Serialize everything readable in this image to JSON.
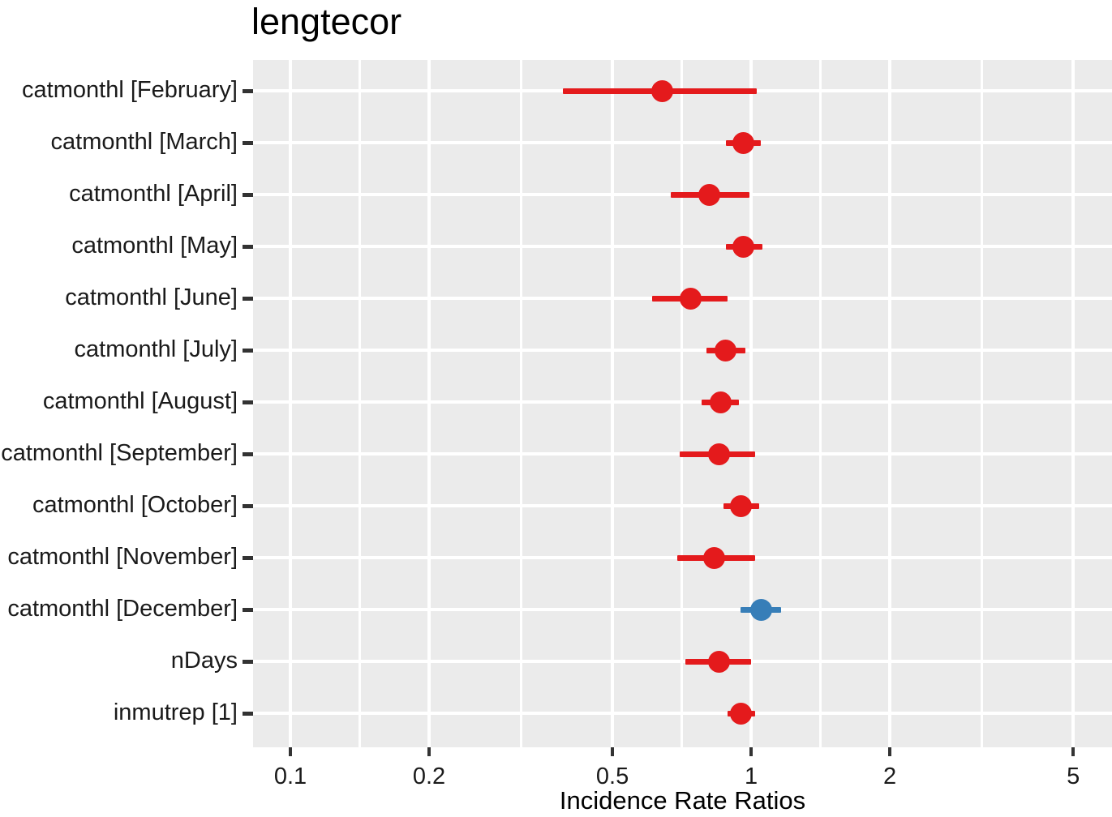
{
  "chart_data": {
    "type": "scatter",
    "subtype": "forest-dot-whisker",
    "title": "lengtecor",
    "xlabel": "Incidence Rate Ratios",
    "ylabel": "",
    "x_scale": "log10",
    "xlim": [
      0.083,
      6.07
    ],
    "x_ticks": [
      {
        "value": 0.1,
        "label": "0.1"
      },
      {
        "value": 0.2,
        "label": "0.2"
      },
      {
        "value": 0.5,
        "label": "0.5"
      },
      {
        "value": 1,
        "label": "1"
      },
      {
        "value": 2,
        "label": "2"
      },
      {
        "value": 5,
        "label": "5"
      }
    ],
    "x_minor_gridlines": [
      0.1414,
      0.3162,
      0.7071,
      1.4142,
      3.1623
    ],
    "grid": "on",
    "legend": "none",
    "reference_line": 1,
    "colors": {
      "negative_effect": "#e41a1c",
      "positive_effect": "#377eb8",
      "panel_background": "#ebebeb",
      "grid": "#ffffff",
      "tick_mark": "#333333",
      "text": "#1a1a1a"
    },
    "rows": [
      {
        "label": "catmonthl [February]",
        "estimate": 0.64,
        "ci_low": 0.39,
        "ci_high": 1.03,
        "group": "negative_effect"
      },
      {
        "label": "catmonthl [March]",
        "estimate": 0.96,
        "ci_low": 0.88,
        "ci_high": 1.05,
        "group": "negative_effect"
      },
      {
        "label": "catmonthl [April]",
        "estimate": 0.81,
        "ci_low": 0.67,
        "ci_high": 0.99,
        "group": "negative_effect"
      },
      {
        "label": "catmonthl [May]",
        "estimate": 0.96,
        "ci_low": 0.88,
        "ci_high": 1.06,
        "group": "negative_effect"
      },
      {
        "label": "catmonthl [June]",
        "estimate": 0.74,
        "ci_low": 0.61,
        "ci_high": 0.89,
        "group": "negative_effect"
      },
      {
        "label": "catmonthl [July]",
        "estimate": 0.88,
        "ci_low": 0.8,
        "ci_high": 0.97,
        "group": "negative_effect"
      },
      {
        "label": "catmonthl [August]",
        "estimate": 0.86,
        "ci_low": 0.78,
        "ci_high": 0.94,
        "group": "negative_effect"
      },
      {
        "label": "catmonthl [September]",
        "estimate": 0.85,
        "ci_low": 0.7,
        "ci_high": 1.02,
        "group": "negative_effect"
      },
      {
        "label": "catmonthl [October]",
        "estimate": 0.95,
        "ci_low": 0.87,
        "ci_high": 1.04,
        "group": "negative_effect"
      },
      {
        "label": "catmonthl [November]",
        "estimate": 0.83,
        "ci_low": 0.69,
        "ci_high": 1.02,
        "group": "negative_effect"
      },
      {
        "label": "catmonthl [December]",
        "estimate": 1.05,
        "ci_low": 0.95,
        "ci_high": 1.16,
        "group": "positive_effect"
      },
      {
        "label": "nDays",
        "estimate": 0.85,
        "ci_low": 0.72,
        "ci_high": 1.0,
        "group": "negative_effect"
      },
      {
        "label": "inmutrep [1]",
        "estimate": 0.95,
        "ci_low": 0.89,
        "ci_high": 1.02,
        "group": "negative_effect"
      }
    ]
  }
}
